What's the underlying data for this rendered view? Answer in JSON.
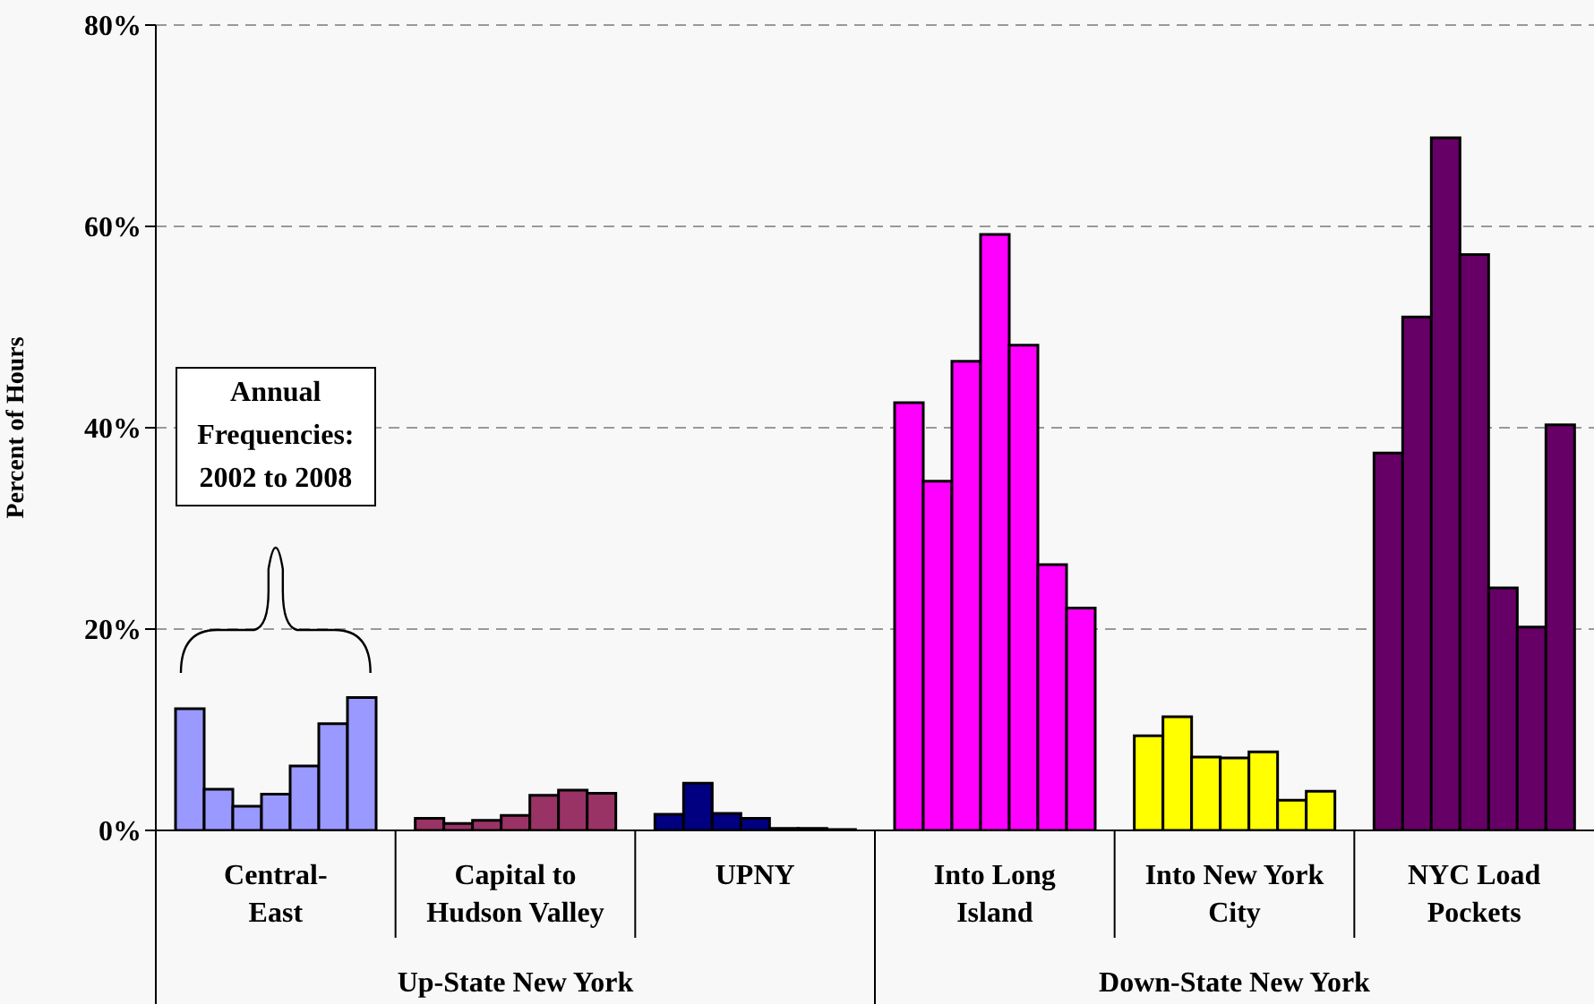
{
  "chart_data": {
    "type": "bar",
    "ylabel": "Percent of Hours",
    "categories": [
      "Central-East",
      "Capital to Hudson Valley",
      "UPNY",
      "Into Long Island",
      "Into New York City",
      "NYC Load Pockets"
    ],
    "series": [
      {
        "colors": [
          "#9999ff",
          "#993366",
          "#000080",
          "#ff00ff",
          "#ffff00",
          "#660066"
        ],
        "values": [
          12.1,
          1.2,
          1.6,
          42.5,
          9.4,
          37.5
        ]
      },
      {
        "colors": [
          "#9999ff",
          "#993366",
          "#000080",
          "#ff00ff",
          "#ffff00",
          "#660066"
        ],
        "values": [
          4.1,
          0.7,
          4.7,
          34.7,
          11.3,
          51.0
        ]
      },
      {
        "colors": [
          "#9999ff",
          "#993366",
          "#000080",
          "#ff00ff",
          "#ffff00",
          "#660066"
        ],
        "values": [
          2.4,
          1.0,
          1.7,
          46.6,
          7.3,
          68.8
        ]
      },
      {
        "colors": [
          "#9999ff",
          "#993366",
          "#000080",
          "#ff00ff",
          "#ffff00",
          "#660066"
        ],
        "values": [
          3.6,
          1.5,
          1.2,
          59.2,
          7.2,
          57.2
        ]
      },
      {
        "colors": [
          "#9999ff",
          "#993366",
          "#000080",
          "#ff00ff",
          "#ffff00",
          "#660066"
        ],
        "values": [
          6.4,
          3.5,
          0.2,
          48.2,
          7.8,
          24.1
        ]
      },
      {
        "colors": [
          "#9999ff",
          "#993366",
          "#000080",
          "#ff00ff",
          "#ffff00",
          "#660066"
        ],
        "values": [
          10.6,
          4.0,
          0.2,
          26.4,
          3.0,
          20.2
        ]
      },
      {
        "colors": [
          "#9999ff",
          "#993366",
          "#000080",
          "#ff00ff",
          "#ffff00",
          "#660066"
        ],
        "values": [
          13.2,
          3.7,
          0.1,
          22.1,
          3.9,
          40.3
        ]
      }
    ],
    "ylim": [
      0,
      80
    ],
    "yticks": [
      {
        "value": 0,
        "label": "0%"
      },
      {
        "value": 20,
        "label": "20%"
      },
      {
        "value": 40,
        "label": "40%"
      },
      {
        "value": 60,
        "label": "60%"
      },
      {
        "value": 80,
        "label": "80%"
      }
    ],
    "grid": "y",
    "legend": false,
    "annotations": [
      "Annual Frequencies: 2002 to 2008",
      "Up-State New York",
      "Down-State New York"
    ]
  }
}
